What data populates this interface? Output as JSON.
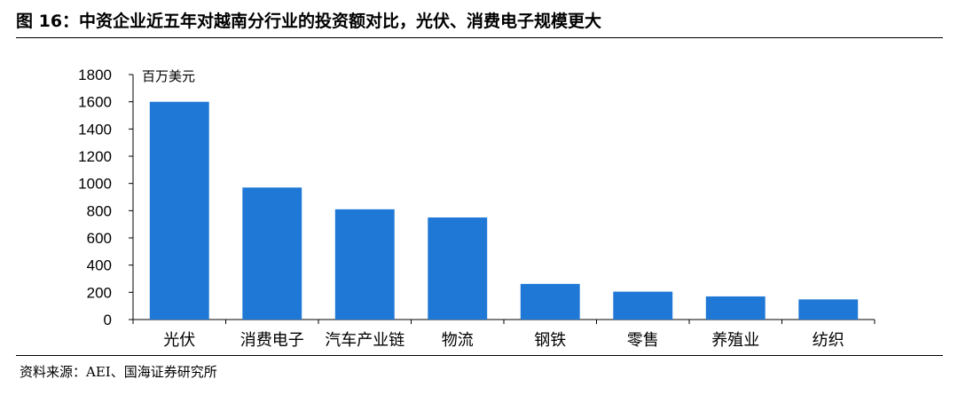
{
  "title": "图 16：中资企业近五年对越南分行业的投资额对比，光伏、消费电子规模更大",
  "source": "资料来源：AEI、国海证券研究所",
  "chart_data": {
    "type": "bar",
    "unit_label": "百万美元",
    "categories": [
      "光伏",
      "消费电子",
      "汽车产业链",
      "物流",
      "钢铁",
      "零售",
      "养殖业",
      "纺织"
    ],
    "values": [
      1600,
      970,
      810,
      750,
      262,
      205,
      170,
      148
    ],
    "yticks": [
      0,
      200,
      400,
      600,
      800,
      1000,
      1200,
      1400,
      1600,
      1800
    ],
    "ylim": [
      0,
      1800
    ],
    "bar_color": "#1f78d6",
    "legend": "none",
    "grid": false
  }
}
